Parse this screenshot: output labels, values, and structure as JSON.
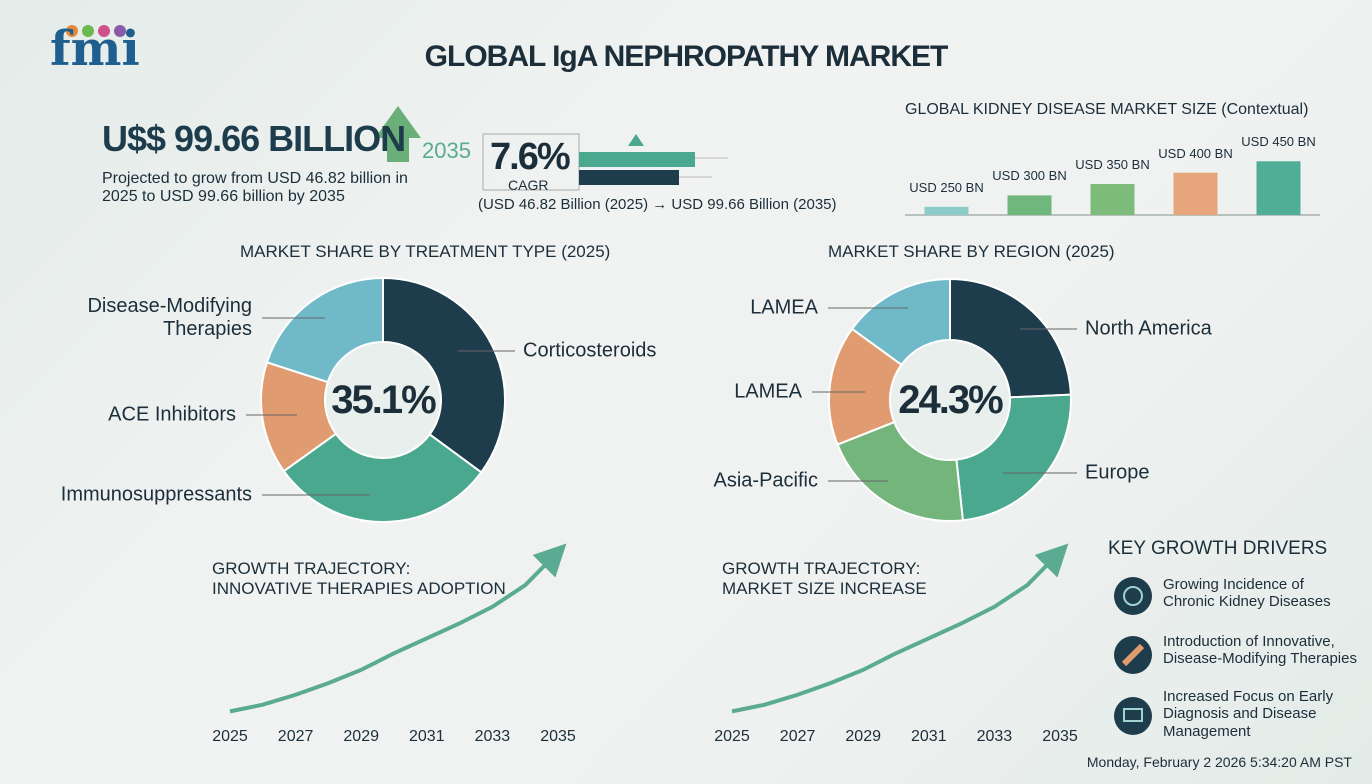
{
  "header": {
    "logo": "fmi",
    "title": "GLOBAL IgA NEPHROPATHY MARKET"
  },
  "summary": {
    "headline": "U$$ 99.66 BILLION",
    "year": "2035",
    "description": "Projected to grow from USD 46.82 billion in\n2025 to USD 99.66 billion by 2035",
    "cagr": "7.6%",
    "cagr_label": "CAGR",
    "cagr_note": "(USD 46.82 Billion (2025) → USD 99.66 Billion (2035)"
  },
  "key_drivers": {
    "title": "KEY GROWTH DRIVERS",
    "items": [
      "Growing Incidence of\nChronic Kidney Diseases",
      "Introduction of Innovative,\nDisease-Modifying Therapies",
      "Increased Focus on Early\nDiagnosis and Disease\nManagement"
    ]
  },
  "footer": "Monday, February 2 2026 5:34:20 AM PST",
  "chart_data": [
    {
      "type": "bar",
      "title": "GLOBAL KIDNEY DISEASE MARKET SIZE (Contextual)",
      "categories": [
        null,
        null,
        null,
        null,
        null
      ],
      "values": [
        250,
        300,
        350,
        400,
        450
      ],
      "value_labels": [
        "USD 250 BN",
        "USD 300 BN",
        "USD 350 BN",
        "USD 400 BN",
        "USD 450 BN"
      ],
      "colors": [
        "#8ccdc9",
        "#6fb77d",
        "#7dbb7a",
        "#e6a57a",
        "#4fae95"
      ],
      "ylim": [
        214,
        460
      ]
    },
    {
      "type": "donut",
      "title": "MARKET SHARE BY TREATMENT TYPE (2025)",
      "categories": [
        "Corticosteroids",
        "Immunosuppressants",
        "ACE Inhibitors",
        "Disease-Modifying\nTherapies"
      ],
      "values": [
        35.1,
        30,
        14.9,
        20
      ],
      "value_labels": [
        "35.1%",
        null,
        null,
        null
      ],
      "colors": [
        "#1d3c4c",
        "#4aa88e",
        "#e09c70",
        "#6fb9c9"
      ]
    },
    {
      "type": "donut",
      "title": "MARKET SHARE BY REGION (2025)",
      "categories": [
        "North America",
        "Europe",
        "Asia-Pacific",
        "LAMEA",
        "LAMEA"
      ],
      "values": [
        24.3,
        24,
        20.7,
        16,
        15
      ],
      "value_labels": [
        "24.3%",
        null,
        null,
        null,
        null
      ],
      "colors": [
        "#1d3c4c",
        "#4aa88e",
        "#74b57c",
        "#e09c70",
        "#6fb9c9"
      ]
    },
    {
      "type": "line",
      "title": "GROWTH TRAJECTORY:\nINNOVATIVE THERAPIES ADOPTION",
      "x": [
        2025,
        2026,
        2027,
        2028,
        2029,
        2030,
        2031,
        2032,
        2033,
        2034,
        2035
      ],
      "values": [
        4,
        8,
        14,
        21,
        29,
        39,
        48,
        57,
        67,
        80,
        100
      ],
      "color": "#5aab92",
      "xlim": [
        2025,
        2035
      ],
      "xticks": [
        2025,
        2027,
        2029,
        2031,
        2033,
        2035
      ],
      "ylim": [
        0,
        100
      ]
    },
    {
      "type": "line",
      "title": "GROWTH TRAJECTORY:\nMARKET SIZE INCREASE",
      "x": [
        2025,
        2026,
        2027,
        2028,
        2029,
        2030,
        2031,
        2032,
        2033,
        2034,
        2035
      ],
      "values": [
        4,
        8,
        14,
        21,
        29,
        39,
        48,
        57,
        67,
        80,
        100
      ],
      "color": "#5aab92",
      "xlim": [
        2025,
        2035
      ],
      "xticks": [
        2025,
        2027,
        2029,
        2031,
        2033,
        2035
      ],
      "ylim": [
        0,
        100
      ]
    }
  ]
}
